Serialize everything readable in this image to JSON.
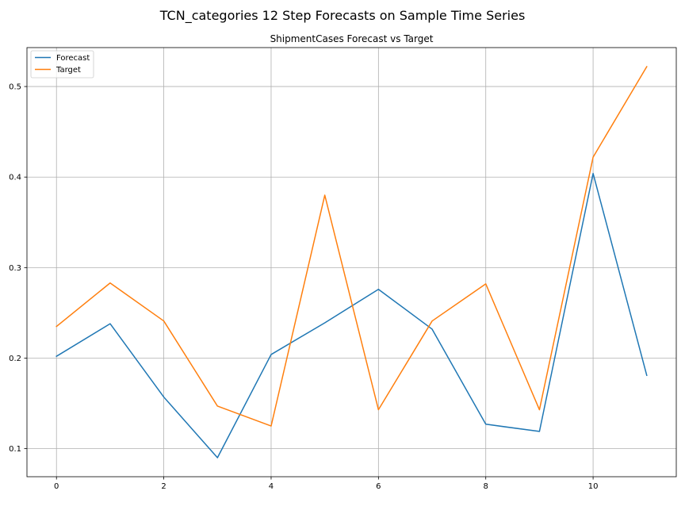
{
  "figure": {
    "suptitle": "TCN_categories 12 Step Forecasts on Sample Time Series"
  },
  "chart_data": {
    "type": "line",
    "title": "ShipmentCases Forecast vs Target",
    "xlabel": "",
    "ylabel": "",
    "x": [
      0,
      1,
      2,
      3,
      4,
      5,
      6,
      7,
      8,
      9,
      10,
      11
    ],
    "series": [
      {
        "name": "Forecast",
        "color": "#1f77b4",
        "values": [
          0.202,
          0.238,
          0.157,
          0.09,
          0.204,
          0.239,
          0.276,
          0.232,
          0.127,
          0.119,
          0.404,
          0.181
        ]
      },
      {
        "name": "Target",
        "color": "#ff7f0e",
        "values": [
          0.235,
          0.283,
          0.241,
          0.147,
          0.125,
          0.38,
          0.143,
          0.241,
          0.282,
          0.143,
          0.422,
          0.522
        ]
      }
    ],
    "xlim": [
      -0.55,
      11.55
    ],
    "ylim": [
      0.069,
      0.543
    ],
    "xticks": [
      0,
      2,
      4,
      6,
      8,
      10
    ],
    "yticks": [
      0.1,
      0.2,
      0.3,
      0.4,
      0.5
    ],
    "xtick_labels": [
      "0",
      "2",
      "4",
      "6",
      "8",
      "10"
    ],
    "ytick_labels": [
      "0.1",
      "0.2",
      "0.3",
      "0.4",
      "0.5"
    ],
    "grid": true,
    "legend": "top-left"
  }
}
